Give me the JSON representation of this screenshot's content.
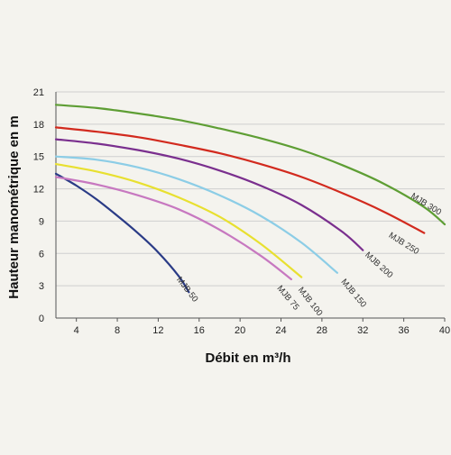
{
  "chart_data": {
    "type": "line",
    "xlabel": "Débit en m³/h",
    "ylabel": "Hauteur manométrique en m",
    "xlim": [
      2,
      40
    ],
    "ylim": [
      0,
      21
    ],
    "xticks": [
      4,
      8,
      12,
      16,
      20,
      24,
      28,
      32,
      36,
      40
    ],
    "yticks": [
      0,
      3,
      6,
      9,
      12,
      15,
      18,
      21
    ],
    "grid": "horizontal",
    "legend": "inline labels at curve ends",
    "series": [
      {
        "name": "MJB 50",
        "color": "#2a3b86",
        "x": [
          2,
          4,
          6,
          8,
          10,
          12,
          14,
          15
        ],
        "y": [
          13.4,
          12.3,
          11,
          9.5,
          7.9,
          6.1,
          3.9,
          2.4
        ]
      },
      {
        "name": "MJB 75",
        "color": "#c778c0",
        "x": [
          2,
          6,
          10,
          14,
          18,
          22,
          25
        ],
        "y": [
          13.1,
          12.4,
          11.4,
          10.1,
          8.2,
          5.8,
          3.6
        ]
      },
      {
        "name": "MJB 100",
        "color": "#e8e030",
        "x": [
          2,
          6,
          10,
          14,
          18,
          22,
          26
        ],
        "y": [
          14.3,
          13.6,
          12.6,
          11.2,
          9.4,
          6.9,
          3.8
        ]
      },
      {
        "name": "MJB 150",
        "color": "#8ccde6",
        "x": [
          2,
          6,
          10,
          14,
          18,
          22,
          26,
          29.5
        ],
        "y": [
          15,
          14.7,
          14,
          12.9,
          11.4,
          9.5,
          7,
          4.2
        ]
      },
      {
        "name": "MJB 200",
        "color": "#7a2f8e",
        "x": [
          2,
          6,
          10,
          14,
          18,
          22,
          26,
          30,
          32
        ],
        "y": [
          16.6,
          16.2,
          15.6,
          14.8,
          13.7,
          12.3,
          10.5,
          8,
          6.3
        ]
      },
      {
        "name": "MJB 250",
        "color": "#d22a1e",
        "x": [
          2,
          6,
          10,
          14,
          18,
          22,
          26,
          30,
          34,
          38
        ],
        "y": [
          17.7,
          17.3,
          16.8,
          16.1,
          15.3,
          14.3,
          13.1,
          11.6,
          9.9,
          7.9
        ]
      },
      {
        "name": "MJB 300",
        "color": "#5e9e34",
        "x": [
          2,
          6,
          10,
          14,
          18,
          22,
          26,
          30,
          34,
          38,
          40
        ],
        "y": [
          19.8,
          19.5,
          19,
          18.4,
          17.6,
          16.7,
          15.6,
          14.2,
          12.5,
          10.3,
          8.7
        ]
      }
    ]
  }
}
